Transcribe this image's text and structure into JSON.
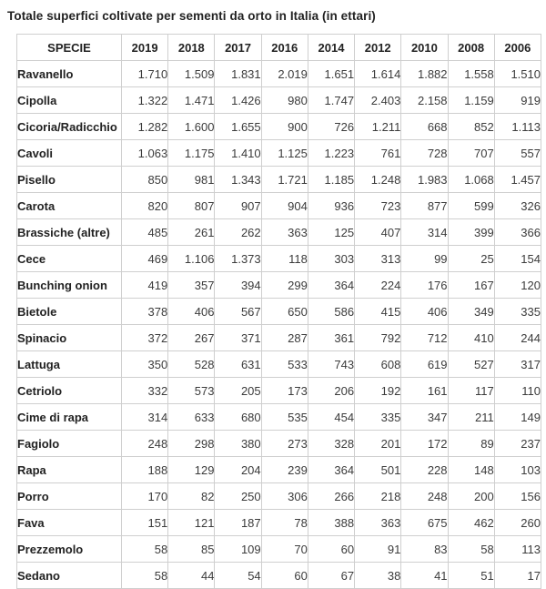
{
  "title": "Totale superfici coltivate per sementi da orto in Italia (in ettari)",
  "colors": {
    "background": "#ffffff",
    "border": "#cfcfcf",
    "heading_text": "#222222",
    "value_text": "#3b3b3b"
  },
  "chart_data": {
    "type": "table",
    "title": "Totale superfici coltivate per sementi da orto in Italia (in ettari)",
    "columns": [
      "SPECIE",
      "2019",
      "2018",
      "2017",
      "2016",
      "2014",
      "2012",
      "2010",
      "2008",
      "2006"
    ],
    "rows": [
      [
        "Ravanello",
        "1.710",
        "1.509",
        "1.831",
        "2.019",
        "1.651",
        "1.614",
        "1.882",
        "1.558",
        "1.510"
      ],
      [
        "Cipolla",
        "1.322",
        "1.471",
        "1.426",
        "980",
        "1.747",
        "2.403",
        "2.158",
        "1.159",
        "919"
      ],
      [
        "Cicoria/Radicchio",
        "1.282",
        "1.600",
        "1.655",
        "900",
        "726",
        "1.211",
        "668",
        "852",
        "1.113"
      ],
      [
        "Cavoli",
        "1.063",
        "1.175",
        "1.410",
        "1.125",
        "1.223",
        "761",
        "728",
        "707",
        "557"
      ],
      [
        "Pisello",
        "850",
        "981",
        "1.343",
        "1.721",
        "1.185",
        "1.248",
        "1.983",
        "1.068",
        "1.457"
      ],
      [
        "Carota",
        "820",
        "807",
        "907",
        "904",
        "936",
        "723",
        "877",
        "599",
        "326"
      ],
      [
        "Brassiche (altre)",
        "485",
        "261",
        "262",
        "363",
        "125",
        "407",
        "314",
        "399",
        "366"
      ],
      [
        "Cece",
        "469",
        "1.106",
        "1.373",
        "118",
        "303",
        "313",
        "99",
        "25",
        "154"
      ],
      [
        "Bunching onion",
        "419",
        "357",
        "394",
        "299",
        "364",
        "224",
        "176",
        "167",
        "120"
      ],
      [
        "Bietole",
        "378",
        "406",
        "567",
        "650",
        "586",
        "415",
        "406",
        "349",
        "335"
      ],
      [
        "Spinacio",
        "372",
        "267",
        "371",
        "287",
        "361",
        "792",
        "712",
        "410",
        "244"
      ],
      [
        "Lattuga",
        "350",
        "528",
        "631",
        "533",
        "743",
        "608",
        "619",
        "527",
        "317"
      ],
      [
        "Cetriolo",
        "332",
        "573",
        "205",
        "173",
        "206",
        "192",
        "161",
        "117",
        "110"
      ],
      [
        "Cime di rapa",
        "314",
        "633",
        "680",
        "535",
        "454",
        "335",
        "347",
        "211",
        "149"
      ],
      [
        "Fagiolo",
        "248",
        "298",
        "380",
        "273",
        "328",
        "201",
        "172",
        "89",
        "237"
      ],
      [
        "Rapa",
        "188",
        "129",
        "204",
        "239",
        "364",
        "501",
        "228",
        "148",
        "103"
      ],
      [
        "Porro",
        "170",
        "82",
        "250",
        "306",
        "266",
        "218",
        "248",
        "200",
        "156"
      ],
      [
        "Fava",
        "151",
        "121",
        "187",
        "78",
        "388",
        "363",
        "675",
        "462",
        "260"
      ],
      [
        "Prezzemolo",
        "58",
        "85",
        "109",
        "70",
        "60",
        "91",
        "83",
        "58",
        "113"
      ],
      [
        "Sedano",
        "58",
        "44",
        "54",
        "60",
        "67",
        "38",
        "41",
        "51",
        "17"
      ]
    ]
  }
}
